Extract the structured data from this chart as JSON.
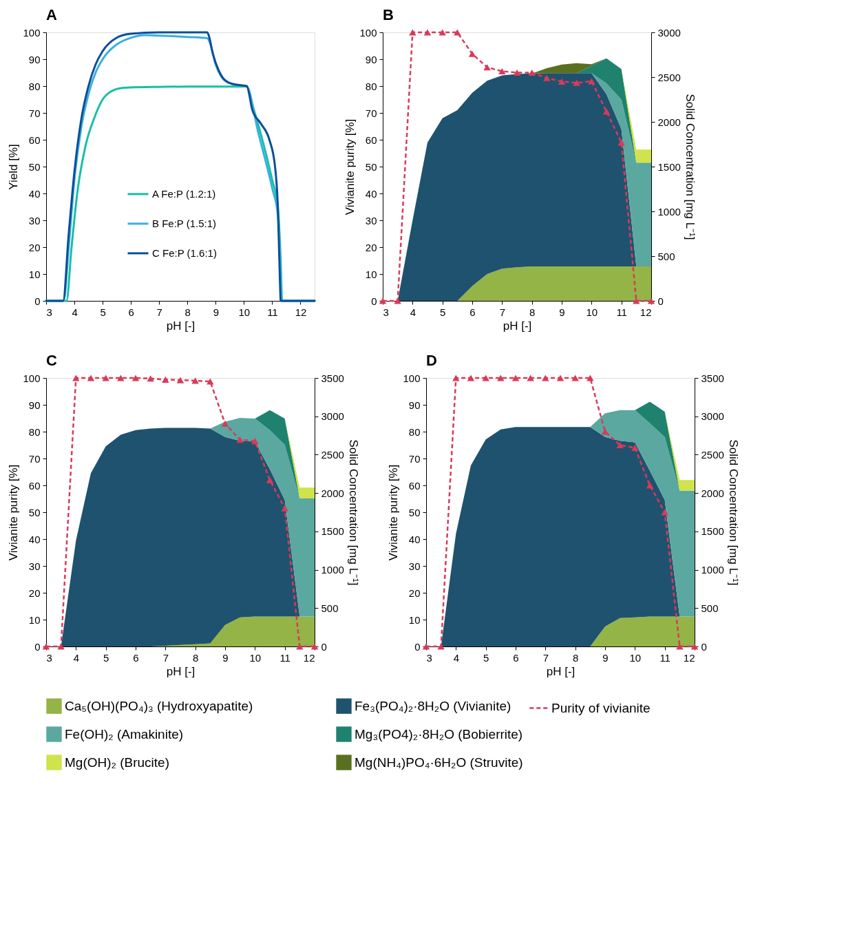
{
  "chart_data": [
    {
      "type": "line",
      "title": "A",
      "xlabel": "pH [-]",
      "ylabel": "Yield [%]",
      "xlim": [
        3,
        12.5
      ],
      "xticks": [
        3,
        4,
        5,
        6,
        7,
        8,
        9,
        10,
        11,
        12
      ],
      "ylim": [
        0,
        100
      ],
      "yticks": [
        0,
        10,
        20,
        30,
        40,
        50,
        60,
        70,
        80,
        90,
        100
      ],
      "grid": false,
      "legend": "bottom",
      "marker": "none",
      "line_style": "solid",
      "series": [
        {
          "name": "A Fe:P (1.2:1)",
          "color": "#17bfa5",
          "x": [
            3,
            3.72,
            3.9,
            4.1,
            4.4,
            4.7,
            5,
            5.3,
            5.7,
            6,
            7,
            8,
            9,
            10,
            10.1,
            10.3,
            10.6,
            11,
            11.2,
            11.3,
            11.35,
            12.5
          ],
          "values": [
            0,
            0,
            20,
            40,
            58,
            68,
            75,
            78,
            79.3,
            79.5,
            79.7,
            79.8,
            79.8,
            79.8,
            79.8,
            73,
            62,
            45,
            35,
            15,
            0,
            0
          ]
        },
        {
          "name": "B Fe:P (1.5:1)",
          "color": "#3aaee3",
          "x": [
            3,
            3.62,
            3.8,
            4,
            4.25,
            4.5,
            4.75,
            5,
            5.5,
            6,
            6.5,
            7,
            8,
            8.7,
            8.8,
            9,
            9.2,
            9.5,
            10,
            10.1,
            10.5,
            11,
            11.2,
            11.3,
            11.33,
            12.5
          ],
          "values": [
            0,
            0,
            20,
            45,
            65,
            77,
            85,
            90,
            95.5,
            98,
            99,
            98.8,
            98.3,
            97.8,
            96,
            88,
            83.5,
            81,
            80,
            79.8,
            63,
            42,
            32,
            10,
            0,
            0
          ]
        },
        {
          "name": "C Fe:P (1.6:1)",
          "color": "#0b4f97",
          "x": [
            3,
            3.6,
            3.8,
            4,
            4.25,
            4.5,
            4.75,
            5,
            5.5,
            6,
            7,
            8,
            8.7,
            8.75,
            8.9,
            9.1,
            9.3,
            9.6,
            10,
            10.1,
            10.3,
            10.6,
            10.9,
            11.1,
            11.2,
            11.28,
            11.3,
            12.5
          ],
          "values": [
            0,
            0,
            25,
            48,
            68,
            80,
            88,
            93,
            98,
            99.5,
            100,
            100,
            100,
            99,
            92,
            86,
            82.5,
            80.8,
            80.2,
            80,
            71,
            66,
            60,
            50,
            35,
            5,
            0,
            0
          ]
        }
      ]
    },
    {
      "type": "area",
      "title": "B",
      "stacked": true,
      "xlabel": "pH [-]",
      "ylabel": "Vivianite purity [%]",
      "y2label": "Solid Concentration [mg L⁻¹]",
      "xlim": [
        3,
        12
      ],
      "xticks": [
        3,
        4,
        5,
        6,
        7,
        8,
        9,
        10,
        11,
        12
      ],
      "ylim": [
        0,
        100
      ],
      "yticks": [
        0,
        10,
        20,
        30,
        40,
        50,
        60,
        70,
        80,
        90,
        100
      ],
      "y2lim": [
        0,
        3000
      ],
      "y2ticks": [
        0,
        500,
        1000,
        1500,
        2000,
        2500,
        3000
      ],
      "grid": false,
      "legend": "bottom",
      "x": [
        3,
        3.5,
        4,
        4.5,
        5,
        5.5,
        6,
        6.5,
        7,
        7.5,
        8,
        8.5,
        9,
        9.5,
        10,
        10.5,
        11,
        11.5,
        12
      ],
      "series": [
        {
          "name": "Ca₅(OH)(PO₄)₃ (Hydroxyapatite)",
          "type": "area",
          "axis": "y2",
          "color": "#94b447",
          "values": [
            null,
            null,
            null,
            null,
            null,
            0,
            165,
            300,
            360,
            375,
            385,
            385,
            385,
            385,
            385,
            385,
            385,
            385,
            385
          ]
        },
        {
          "name": "Fe₃(PO₄)₂·8H₂O (Vivianite)",
          "type": "area",
          "axis": "y2",
          "color": "#1f526e",
          "values": [
            null,
            0,
            900,
            1770,
            2040,
            2130,
            2160,
            2160,
            2160,
            2160,
            2155,
            2160,
            2160,
            2160,
            2160,
            1925,
            1535,
            0,
            null
          ]
        },
        {
          "name": "Fe(OH)₂ (Amakinite)",
          "type": "area",
          "axis": "y2",
          "color": "#5ba8a0",
          "values": [
            null,
            null,
            null,
            null,
            null,
            null,
            null,
            null,
            null,
            null,
            null,
            null,
            null,
            null,
            0,
            120,
            330,
            1160,
            1160
          ]
        },
        {
          "name": "Mg₃(PO4)₂·8H₂O (Bobierrite)",
          "type": "area",
          "axis": "y2",
          "color": "#1e826e",
          "values": [
            null,
            null,
            null,
            null,
            null,
            null,
            null,
            null,
            null,
            null,
            null,
            null,
            null,
            0,
            80,
            280,
            340,
            0,
            null
          ]
        },
        {
          "name": "Mg(OH)₂ (Brucite)",
          "type": "area",
          "axis": "y2",
          "color": "#cfe34b",
          "values": [
            null,
            null,
            null,
            null,
            null,
            null,
            null,
            null,
            null,
            null,
            null,
            null,
            null,
            null,
            null,
            null,
            0,
            145,
            145
          ]
        },
        {
          "name": "Mg(NH₄)PO₄·6H₂O (Struvite)",
          "type": "area",
          "axis": "y2",
          "color": "#5a7020",
          "values": [
            null,
            null,
            null,
            null,
            null,
            null,
            null,
            null,
            null,
            null,
            0,
            55,
            95,
            110,
            20,
            0,
            null,
            null,
            null
          ]
        },
        {
          "name": "Purity of vivianite",
          "type": "line",
          "axis": "y",
          "color": "#d93a5a",
          "marker": "triangle",
          "line_style": "dashed",
          "values": [
            0,
            0,
            100,
            100,
            100,
            100,
            92,
            87,
            85.5,
            85,
            85,
            83,
            81.7,
            81.2,
            81.8,
            70.5,
            59,
            0,
            0
          ]
        }
      ]
    },
    {
      "type": "area",
      "title": "C",
      "stacked": true,
      "xlabel": "pH [-]",
      "ylabel": "Vivianite purity [%]",
      "y2label": "Solid Concentration [mg L⁻¹]",
      "xlim": [
        3,
        12
      ],
      "xticks": [
        3,
        4,
        5,
        6,
        7,
        8,
        9,
        10,
        11,
        12
      ],
      "ylim": [
        0,
        100
      ],
      "yticks": [
        0,
        10,
        20,
        30,
        40,
        50,
        60,
        70,
        80,
        90,
        100
      ],
      "y2lim": [
        0,
        3500
      ],
      "y2ticks": [
        0,
        500,
        1000,
        1500,
        2000,
        2500,
        3000,
        3500
      ],
      "grid": false,
      "legend": "bottom",
      "x": [
        3,
        3.5,
        4,
        4.5,
        5,
        5.5,
        6,
        6.5,
        7,
        7.5,
        8,
        8.5,
        9,
        9.5,
        10,
        10.5,
        11,
        11.5,
        12
      ],
      "series": [
        {
          "name": "Ca₅(OH)(PO₄)₃ (Hydroxyapatite)",
          "type": "area",
          "axis": "y2",
          "color": "#94b447",
          "values": [
            null,
            null,
            null,
            null,
            null,
            null,
            0,
            0,
            10,
            20,
            30,
            40,
            280,
            380,
            390,
            390,
            390,
            390,
            390
          ]
        },
        {
          "name": "Fe₃(PO₄)₂·8H₂O (Vivianite)",
          "type": "area",
          "axis": "y2",
          "color": "#1f526e",
          "values": [
            null,
            0,
            1380,
            2260,
            2610,
            2760,
            2820,
            2840,
            2840,
            2830,
            2820,
            2800,
            2450,
            2300,
            2280,
            1920,
            1520,
            0,
            null
          ]
        },
        {
          "name": "Fe(OH)₂ (Amakinite)",
          "type": "area",
          "axis": "y2",
          "color": "#5ba8a0",
          "values": [
            null,
            null,
            null,
            null,
            null,
            null,
            null,
            null,
            null,
            null,
            null,
            0,
            200,
            300,
            300,
            510,
            720,
            1540,
            1540
          ]
        },
        {
          "name": "Mg₃(PO4)₂·8H₂O (Bobierrite)",
          "type": "area",
          "axis": "y2",
          "color": "#1e826e",
          "values": [
            null,
            null,
            null,
            null,
            null,
            null,
            null,
            null,
            null,
            null,
            null,
            null,
            null,
            null,
            0,
            260,
            340,
            0,
            null
          ]
        },
        {
          "name": "Mg(OH)₂ (Brucite)",
          "type": "area",
          "axis": "y2",
          "color": "#cfe34b",
          "values": [
            null,
            null,
            null,
            null,
            null,
            null,
            null,
            null,
            null,
            null,
            null,
            null,
            null,
            null,
            null,
            null,
            0,
            140,
            140
          ]
        },
        {
          "name": "Purity of vivianite",
          "type": "line",
          "axis": "y",
          "color": "#d93a5a",
          "marker": "triangle",
          "line_style": "dashed",
          "values": [
            0,
            0,
            100,
            100,
            100,
            100,
            100,
            99.8,
            99.4,
            99.2,
            99,
            98.7,
            83,
            77,
            76.5,
            62,
            51.5,
            0,
            0
          ]
        }
      ]
    },
    {
      "type": "area",
      "title": "D",
      "stacked": true,
      "xlabel": "pH [-]",
      "ylabel": "Vivianite purity [%]",
      "y2label": "Solid Concentration [mg L⁻¹]",
      "xlim": [
        3,
        12
      ],
      "xticks": [
        3,
        4,
        5,
        6,
        7,
        8,
        9,
        10,
        11,
        12
      ],
      "ylim": [
        0,
        100
      ],
      "yticks": [
        0,
        10,
        20,
        30,
        40,
        50,
        60,
        70,
        80,
        90,
        100
      ],
      "y2lim": [
        0,
        3500
      ],
      "y2ticks": [
        0,
        500,
        1000,
        1500,
        2000,
        2500,
        3000,
        3500
      ],
      "grid": false,
      "legend": "bottom",
      "x": [
        3,
        3.5,
        4,
        4.5,
        5,
        5.5,
        6,
        6.5,
        7,
        7.5,
        8,
        8.5,
        9,
        9.5,
        10,
        10.5,
        11,
        11.5,
        12
      ],
      "series": [
        {
          "name": "Ca₅(OH)(PO₄)₃ (Hydroxyapatite)",
          "type": "area",
          "axis": "y2",
          "color": "#94b447",
          "values": [
            null,
            null,
            null,
            null,
            null,
            null,
            null,
            null,
            null,
            null,
            null,
            0,
            260,
            370,
            380,
            390,
            390,
            390,
            390
          ]
        },
        {
          "name": "Fe₃(PO₄)₂·8H₂O (Vivianite)",
          "type": "area",
          "axis": "y2",
          "color": "#1f526e",
          "values": [
            null,
            0,
            1470,
            2360,
            2700,
            2830,
            2860,
            2860,
            2860,
            2860,
            2860,
            2860,
            2470,
            2310,
            2280,
            1900,
            1520,
            0,
            null
          ]
        },
        {
          "name": "Fe(OH)₂ (Amakinite)",
          "type": "area",
          "axis": "y2",
          "color": "#5ba8a0",
          "values": [
            null,
            null,
            null,
            null,
            null,
            null,
            null,
            null,
            null,
            null,
            null,
            0,
            310,
            400,
            420,
            620,
            820,
            1640,
            1640
          ]
        },
        {
          "name": "Mg₃(PO4)₂·8H₂O (Bobierrite)",
          "type": "area",
          "axis": "y2",
          "color": "#1e826e",
          "values": [
            null,
            null,
            null,
            null,
            null,
            null,
            null,
            null,
            null,
            null,
            null,
            null,
            null,
            null,
            0,
            280,
            330,
            0,
            null
          ]
        },
        {
          "name": "Mg(OH)₂ (Brucite)",
          "type": "area",
          "axis": "y2",
          "color": "#cfe34b",
          "values": [
            null,
            null,
            null,
            null,
            null,
            null,
            null,
            null,
            null,
            null,
            null,
            null,
            null,
            null,
            null,
            null,
            0,
            140,
            140
          ]
        },
        {
          "name": "Purity of vivianite",
          "type": "line",
          "axis": "y",
          "color": "#d93a5a",
          "marker": "triangle",
          "line_style": "dashed",
          "values": [
            0,
            0,
            100,
            100,
            100,
            100,
            100,
            100,
            100,
            100,
            100,
            100,
            80,
            75,
            74,
            60,
            50,
            0,
            0
          ]
        }
      ]
    }
  ]
}
